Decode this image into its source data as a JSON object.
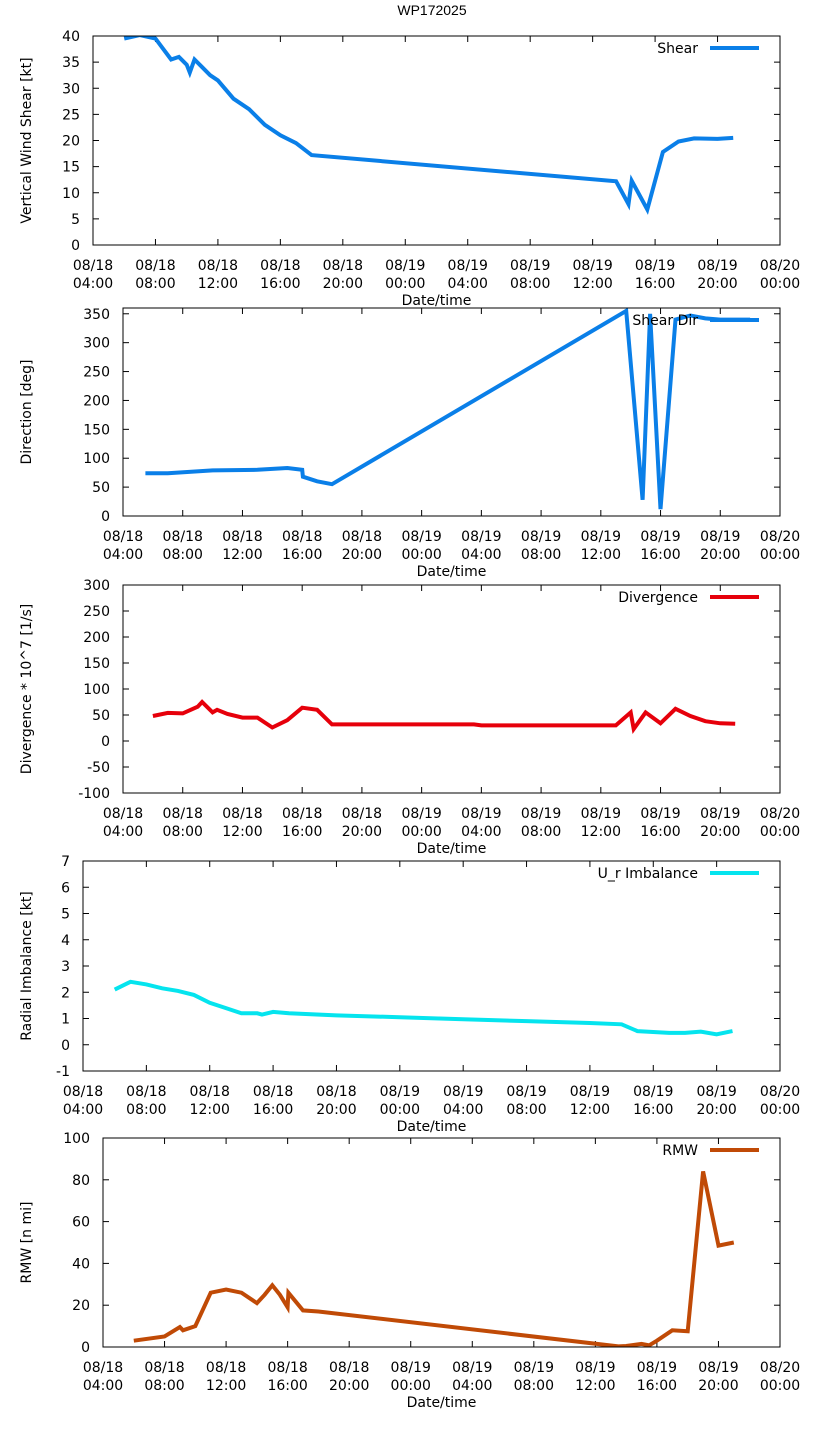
{
  "figure_title": "WP172025",
  "colors": {
    "blue": "#0a7fe8",
    "red": "#e6000b",
    "cyan": "#05e4ee",
    "orange": "#c04a06"
  },
  "chart_data": [
    {
      "type": "line",
      "title": "WP172025",
      "xlabel": "Date/time",
      "ylabel": "Vertical Wind Shear [kt]",
      "legend": "Shear",
      "legend_position": "top-right",
      "color_key": "blue",
      "ylim": [
        0,
        40
      ],
      "yticks": [
        0,
        5,
        10,
        15,
        20,
        25,
        30,
        35,
        40
      ],
      "x_unit": "hours since 08/18 04:00",
      "xlim": [
        0,
        44
      ],
      "xticks": [
        {
          "pos": 0,
          "label": [
            "08/18",
            "04:00"
          ]
        },
        {
          "pos": 4,
          "label": [
            "08/18",
            "08:00"
          ]
        },
        {
          "pos": 8,
          "label": [
            "08/18",
            "12:00"
          ]
        },
        {
          "pos": 12,
          "label": [
            "08/18",
            "16:00"
          ]
        },
        {
          "pos": 16,
          "label": [
            "08/18",
            "20:00"
          ]
        },
        {
          "pos": 20,
          "label": [
            "08/19",
            "00:00"
          ]
        },
        {
          "pos": 24,
          "label": [
            "08/19",
            "04:00"
          ]
        },
        {
          "pos": 28,
          "label": [
            "08/19",
            "08:00"
          ]
        },
        {
          "pos": 32,
          "label": [
            "08/19",
            "12:00"
          ]
        },
        {
          "pos": 36,
          "label": [
            "08/19",
            "16:00"
          ]
        },
        {
          "pos": 40,
          "label": [
            "08/19",
            "20:00"
          ]
        },
        {
          "pos": 44,
          "label": [
            "08/20",
            "00:00"
          ]
        }
      ],
      "series": [
        {
          "name": "Shear",
          "x": [
            2,
            3,
            4,
            4.5,
            5,
            5.5,
            6,
            6.2,
            6.5,
            7,
            7.5,
            8,
            9,
            10,
            11,
            12,
            13,
            14,
            33.5,
            34.3,
            34.5,
            35.5,
            36.5,
            37.5,
            38.5,
            40,
            41
          ],
          "y": [
            39.5,
            40.2,
            39.5,
            37.5,
            35.5,
            36,
            34.5,
            33,
            35.5,
            34,
            32.5,
            31.5,
            28,
            26,
            23,
            21,
            19.5,
            17.2,
            12.2,
            7.8,
            12.3,
            6.8,
            17.8,
            19.8,
            20.4,
            20.3,
            20.5
          ]
        }
      ]
    },
    {
      "type": "line",
      "xlabel": "Date/time",
      "ylabel": "Direction [deg]",
      "legend": "Shear Dir",
      "legend_position": "top-right",
      "color_key": "blue",
      "ylim": [
        0,
        360
      ],
      "yticks": [
        0,
        50,
        100,
        150,
        200,
        250,
        300,
        350
      ],
      "x_unit": "hours since 08/18 04:00",
      "xlim": [
        0,
        44
      ],
      "xticks": [
        {
          "pos": 0,
          "label": [
            "08/18",
            "04:00"
          ]
        },
        {
          "pos": 4,
          "label": [
            "08/18",
            "08:00"
          ]
        },
        {
          "pos": 8,
          "label": [
            "08/18",
            "12:00"
          ]
        },
        {
          "pos": 12,
          "label": [
            "08/18",
            "16:00"
          ]
        },
        {
          "pos": 16,
          "label": [
            "08/18",
            "20:00"
          ]
        },
        {
          "pos": 20,
          "label": [
            "08/19",
            "00:00"
          ]
        },
        {
          "pos": 24,
          "label": [
            "08/19",
            "04:00"
          ]
        },
        {
          "pos": 28,
          "label": [
            "08/19",
            "08:00"
          ]
        },
        {
          "pos": 32,
          "label": [
            "08/19",
            "12:00"
          ]
        },
        {
          "pos": 36,
          "label": [
            "08/19",
            "16:00"
          ]
        },
        {
          "pos": 40,
          "label": [
            "08/19",
            "20:00"
          ]
        },
        {
          "pos": 44,
          "label": [
            "08/20",
            "00:00"
          ]
        }
      ],
      "series": [
        {
          "name": "Shear Dir",
          "x": [
            1.5,
            3,
            6,
            9,
            11,
            12,
            12.05,
            13,
            14,
            33.7,
            34.8,
            35.3,
            36,
            37,
            38,
            39,
            40,
            42
          ],
          "y": [
            74,
            74,
            79,
            80,
            83,
            80,
            68,
            60,
            55,
            355,
            28,
            350,
            12,
            340,
            347,
            342,
            340,
            340
          ]
        }
      ]
    },
    {
      "type": "line",
      "xlabel": "Date/time",
      "ylabel": "Divergence * 10^7 [1/s]",
      "legend": "Divergence",
      "legend_position": "top-right",
      "color_key": "red",
      "ylim": [
        -100,
        300
      ],
      "yticks": [
        -100,
        -50,
        0,
        50,
        100,
        150,
        200,
        250,
        300
      ],
      "x_unit": "hours since 08/18 04:00",
      "xlim": [
        0,
        44
      ],
      "xticks": [
        {
          "pos": 0,
          "label": [
            "08/18",
            "04:00"
          ]
        },
        {
          "pos": 4,
          "label": [
            "08/18",
            "08:00"
          ]
        },
        {
          "pos": 8,
          "label": [
            "08/18",
            "12:00"
          ]
        },
        {
          "pos": 12,
          "label": [
            "08/18",
            "16:00"
          ]
        },
        {
          "pos": 16,
          "label": [
            "08/18",
            "20:00"
          ]
        },
        {
          "pos": 20,
          "label": [
            "08/19",
            "00:00"
          ]
        },
        {
          "pos": 24,
          "label": [
            "08/19",
            "04:00"
          ]
        },
        {
          "pos": 28,
          "label": [
            "08/19",
            "08:00"
          ]
        },
        {
          "pos": 32,
          "label": [
            "08/19",
            "12:00"
          ]
        },
        {
          "pos": 36,
          "label": [
            "08/19",
            "16:00"
          ]
        },
        {
          "pos": 40,
          "label": [
            "08/19",
            "20:00"
          ]
        },
        {
          "pos": 44,
          "label": [
            "08/20",
            "00:00"
          ]
        }
      ],
      "series": [
        {
          "name": "Divergence",
          "x": [
            2,
            3,
            4,
            5,
            5.3,
            6,
            6.3,
            7,
            8,
            9,
            10,
            11,
            12,
            13,
            14,
            23.5,
            24,
            33,
            34,
            34.2,
            35,
            36,
            37,
            38,
            39,
            40,
            41
          ],
          "y": [
            48,
            54,
            53,
            66,
            75,
            55,
            60,
            52,
            45,
            45,
            26,
            40,
            64,
            60,
            32,
            32,
            30,
            30,
            55,
            23,
            55,
            34,
            62,
            48,
            38,
            34,
            33
          ]
        }
      ]
    },
    {
      "type": "line",
      "xlabel": "Date/time",
      "ylabel": "Radial Imbalance [kt]",
      "legend": "U_r Imbalance",
      "legend_position": "top-right",
      "color_key": "cyan",
      "ylim": [
        -1,
        7
      ],
      "yticks": [
        -1,
        0,
        1,
        2,
        3,
        4,
        5,
        6,
        7
      ],
      "x_unit": "hours since 08/18 04:00",
      "xlim": [
        0,
        44
      ],
      "xticks": [
        {
          "pos": 0,
          "label": [
            "08/18",
            "04:00"
          ]
        },
        {
          "pos": 4,
          "label": [
            "08/18",
            "08:00"
          ]
        },
        {
          "pos": 8,
          "label": [
            "08/18",
            "12:00"
          ]
        },
        {
          "pos": 12,
          "label": [
            "08/18",
            "16:00"
          ]
        },
        {
          "pos": 16,
          "label": [
            "08/18",
            "20:00"
          ]
        },
        {
          "pos": 20,
          "label": [
            "08/19",
            "00:00"
          ]
        },
        {
          "pos": 24,
          "label": [
            "08/19",
            "04:00"
          ]
        },
        {
          "pos": 28,
          "label": [
            "08/19",
            "08:00"
          ]
        },
        {
          "pos": 32,
          "label": [
            "08/19",
            "12:00"
          ]
        },
        {
          "pos": 36,
          "label": [
            "08/19",
            "16:00"
          ]
        },
        {
          "pos": 40,
          "label": [
            "08/19",
            "20:00"
          ]
        },
        {
          "pos": 44,
          "label": [
            "08/20",
            "00:00"
          ]
        }
      ],
      "series": [
        {
          "name": "U_r Imbalance",
          "x": [
            2,
            3,
            4,
            5,
            6,
            7,
            8,
            9,
            10,
            11,
            11.3,
            12,
            13,
            16,
            20,
            24,
            28,
            32,
            34,
            35,
            37,
            38,
            39,
            40,
            41
          ],
          "y": [
            2.1,
            2.4,
            2.3,
            2.15,
            2.05,
            1.9,
            1.6,
            1.4,
            1.2,
            1.2,
            1.15,
            1.25,
            1.2,
            1.12,
            1.05,
            0.97,
            0.9,
            0.83,
            0.78,
            0.52,
            0.45,
            0.45,
            0.5,
            0.4,
            0.52
          ]
        }
      ]
    },
    {
      "type": "line",
      "xlabel": "Date/time",
      "ylabel": "RMW [n mi]",
      "legend": "RMW",
      "legend_position": "top-right",
      "color_key": "orange",
      "ylim": [
        0,
        100
      ],
      "yticks": [
        0,
        20,
        40,
        60,
        80,
        100
      ],
      "x_unit": "hours since 08/18 04:00",
      "xlim": [
        0,
        44
      ],
      "xticks": [
        {
          "pos": 0,
          "label": [
            "08/18",
            "04:00"
          ]
        },
        {
          "pos": 4,
          "label": [
            "08/18",
            "08:00"
          ]
        },
        {
          "pos": 8,
          "label": [
            "08/18",
            "12:00"
          ]
        },
        {
          "pos": 12,
          "label": [
            "08/18",
            "16:00"
          ]
        },
        {
          "pos": 16,
          "label": [
            "08/18",
            "20:00"
          ]
        },
        {
          "pos": 20,
          "label": [
            "08/19",
            "00:00"
          ]
        },
        {
          "pos": 24,
          "label": [
            "08/19",
            "04:00"
          ]
        },
        {
          "pos": 28,
          "label": [
            "08/19",
            "08:00"
          ]
        },
        {
          "pos": 32,
          "label": [
            "08/19",
            "12:00"
          ]
        },
        {
          "pos": 36,
          "label": [
            "08/19",
            "16:00"
          ]
        },
        {
          "pos": 40,
          "label": [
            "08/19",
            "20:00"
          ]
        },
        {
          "pos": 44,
          "label": [
            "08/20",
            "00:00"
          ]
        }
      ],
      "series": [
        {
          "name": "RMW",
          "x": [
            2,
            4,
            5,
            5.2,
            6,
            7,
            8,
            9,
            10,
            10.5,
            11,
            11.5,
            12,
            12.05,
            13,
            14,
            33.5,
            34,
            35,
            35.5,
            36,
            37,
            38,
            39,
            40,
            41
          ],
          "y": [
            3,
            5,
            9.5,
            8,
            10,
            26,
            27.5,
            26,
            21,
            25,
            29.5,
            25,
            19,
            26,
            17.5,
            17,
            0.3,
            0.5,
            1.5,
            0.8,
            3,
            8,
            7.5,
            84,
            48.5,
            50
          ]
        }
      ]
    }
  ]
}
